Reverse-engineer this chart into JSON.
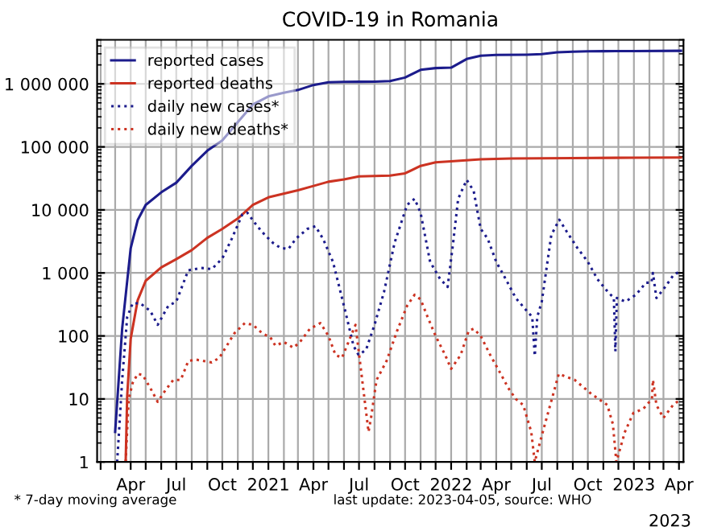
{
  "chart_data": {
    "type": "line",
    "title": "COVID-19 in Romania",
    "log": "y",
    "grid": true,
    "legend": "top left",
    "xlim": [
      "2020-01-25",
      "2023-04-10"
    ],
    "ylim": [
      1,
      5000000
    ],
    "yticks": [
      1,
      10,
      100,
      {
        "value": 1000,
        "label": "1 000"
      },
      {
        "value": 10000,
        "label": "10 000"
      },
      {
        "value": 100000,
        "label": "100 000"
      },
      {
        "value": 1000000,
        "label": "1 000 000"
      }
    ],
    "xticks": [
      {
        "value": "2020-02",
        "label": null
      },
      {
        "value": "2020-03",
        "label": null
      },
      {
        "value": "2020-04",
        "label": "Apr"
      },
      {
        "value": "2020-05",
        "label": null
      },
      {
        "value": "2020-06",
        "label": null
      },
      {
        "value": "2020-07",
        "label": "Jul"
      },
      {
        "value": "2020-08",
        "label": null
      },
      {
        "value": "2020-09",
        "label": null
      },
      {
        "value": "2020-10",
        "label": "Oct"
      },
      {
        "value": "2020-11",
        "label": null
      },
      {
        "value": "2020-12",
        "label": null
      },
      {
        "value": "2021-01",
        "label": "2021"
      },
      {
        "value": "2021-02",
        "label": null
      },
      {
        "value": "2021-03",
        "label": null
      },
      {
        "value": "2021-04",
        "label": "Apr"
      },
      {
        "value": "2021-05",
        "label": null
      },
      {
        "value": "2021-06",
        "label": null
      },
      {
        "value": "2021-07",
        "label": "Jul"
      },
      {
        "value": "2021-08",
        "label": null
      },
      {
        "value": "2021-09",
        "label": null
      },
      {
        "value": "2021-10",
        "label": "Oct"
      },
      {
        "value": "2021-11",
        "label": null
      },
      {
        "value": "2021-12",
        "label": null
      },
      {
        "value": "2022-01",
        "label": "2022"
      },
      {
        "value": "2022-02",
        "label": null
      },
      {
        "value": "2022-03",
        "label": null
      },
      {
        "value": "2022-04",
        "label": "Apr"
      },
      {
        "value": "2022-05",
        "label": null
      },
      {
        "value": "2022-06",
        "label": null
      },
      {
        "value": "2022-07",
        "label": "Jul"
      },
      {
        "value": "2022-08",
        "label": null
      },
      {
        "value": "2022-09",
        "label": null
      },
      {
        "value": "2022-10",
        "label": "Oct"
      },
      {
        "value": "2022-11",
        "label": null
      },
      {
        "value": "2022-12",
        "label": null
      },
      {
        "value": "2023-01",
        "label": "2023"
      },
      {
        "value": "2023-02",
        "label": null
      },
      {
        "value": "2023-03",
        "label": null
      },
      {
        "value": "2023-04",
        "label": "Apr"
      }
    ],
    "annotations": [
      "* 7-day moving average",
      "last update: 2023-04-05, source: WHO",
      "2023"
    ],
    "series": [
      {
        "name": "reported cases",
        "color": "#1c1c8c",
        "line_style": "solid",
        "x": [
          "2020-03-01",
          "2020-03-15",
          "2020-04-01",
          "2020-04-15",
          "2020-05-01",
          "2020-06-01",
          "2020-07-01",
          "2020-08-01",
          "2020-09-01",
          "2020-10-01",
          "2020-11-01",
          "2020-12-01",
          "2021-01-01",
          "2021-02-01",
          "2021-03-01",
          "2021-04-01",
          "2021-05-01",
          "2021-06-01",
          "2021-07-01",
          "2021-08-01",
          "2021-09-01",
          "2021-10-01",
          "2021-11-01",
          "2021-12-01",
          "2022-01-01",
          "2022-02-01",
          "2022-03-01",
          "2022-04-01",
          "2022-06-01",
          "2022-07-01",
          "2022-08-01",
          "2022-09-01",
          "2022-10-01",
          "2022-11-01",
          "2023-01-01",
          "2023-04-05"
        ],
        "values": [
          3,
          131,
          2460,
          6900,
          12000,
          19000,
          27000,
          50000,
          87000,
          127000,
          247000,
          470000,
          632000,
          725000,
          800000,
          960000,
          1060000,
          1078000,
          1081000,
          1083000,
          1110000,
          1260000,
          1670000,
          1780000,
          1810000,
          2480000,
          2800000,
          2880000,
          2910000,
          2960000,
          3170000,
          3240000,
          3290000,
          3300000,
          3320000,
          3350000
        ]
      },
      {
        "name": "reported deaths",
        "color": "#cc3322",
        "line_style": "solid",
        "x": [
          "2020-03-22",
          "2020-03-25",
          "2020-04-01",
          "2020-04-15",
          "2020-05-01",
          "2020-06-01",
          "2020-07-01",
          "2020-08-01",
          "2020-09-01",
          "2020-10-01",
          "2020-11-01",
          "2020-12-01",
          "2021-01-01",
          "2021-03-01",
          "2021-04-01",
          "2021-05-01",
          "2021-06-01",
          "2021-07-01",
          "2021-09-01",
          "2021-10-01",
          "2021-11-01",
          "2021-12-01",
          "2022-01-01",
          "2022-03-01",
          "2022-05-01",
          "2022-09-01",
          "2023-01-01",
          "2023-04-05"
        ],
        "values": [
          1,
          11,
          90,
          370,
          750,
          1220,
          1650,
          2300,
          3600,
          5000,
          7300,
          12000,
          15800,
          20500,
          24000,
          28000,
          30500,
          34000,
          35000,
          38000,
          50000,
          57000,
          58900,
          63500,
          65500,
          66500,
          67400,
          67900
        ]
      },
      {
        "name": "daily new cases*",
        "color": "#1c1c8c",
        "line_style": "dotted",
        "x": [
          "2020-03-05",
          "2020-03-15",
          "2020-03-25",
          "2020-04-05",
          "2020-04-20",
          "2020-05-10",
          "2020-05-25",
          "2020-06-15",
          "2020-07-01",
          "2020-07-25",
          "2020-08-20",
          "2020-09-10",
          "2020-10-01",
          "2020-10-20",
          "2020-11-10",
          "2020-11-20",
          "2020-12-10",
          "2020-12-25",
          "2021-01-10",
          "2021-01-25",
          "2021-02-10",
          "2021-02-25",
          "2021-03-20",
          "2021-04-05",
          "2021-04-20",
          "2021-05-10",
          "2021-06-01",
          "2021-06-20",
          "2021-06-30",
          "2021-07-15",
          "2021-08-01",
          "2021-08-20",
          "2021-09-10",
          "2021-10-05",
          "2021-10-20",
          "2021-11-01",
          "2021-11-20",
          "2021-12-10",
          "2021-12-25",
          "2022-01-05",
          "2022-01-15",
          "2022-02-01",
          "2022-02-15",
          "2022-03-01",
          "2022-03-15",
          "2022-04-01",
          "2022-04-20",
          "2022-05-10",
          "2022-06-01",
          "2022-06-12",
          "2022-06-17",
          "2022-06-22",
          "2022-07-01",
          "2022-07-20",
          "2022-08-05",
          "2022-08-20",
          "2022-09-10",
          "2022-10-01",
          "2022-10-20",
          "2022-11-10",
          "2022-11-22",
          "2022-11-25",
          "2022-11-28",
          "2022-12-15",
          "2023-01-05",
          "2023-01-25",
          "2023-02-05",
          "2023-02-08",
          "2023-02-15",
          "2023-03-01",
          "2023-03-20",
          "2023-04-05"
        ],
        "values": [
          1,
          20,
          200,
          330,
          330,
          250,
          150,
          300,
          350,
          1100,
          1200,
          1150,
          1700,
          3500,
          8500,
          9000,
          5500,
          4000,
          3000,
          2500,
          2400,
          3500,
          5000,
          5500,
          3500,
          1500,
          300,
          70,
          50,
          60,
          150,
          500,
          3000,
          12000,
          15000,
          9000,
          1500,
          800,
          600,
          3000,
          15000,
          30000,
          20000,
          5000,
          3500,
          1500,
          800,
          400,
          250,
          200,
          48,
          200,
          350,
          4000,
          7000,
          4500,
          2500,
          1500,
          800,
          500,
          400,
          57,
          400,
          350,
          450,
          700,
          700,
          1000,
          400,
          550,
          900,
          1100
        ]
      },
      {
        "name": "daily new deaths*",
        "color": "#cc3322",
        "line_style": "dotted",
        "x": [
          "2020-03-22",
          "2020-03-28",
          "2020-04-05",
          "2020-04-15",
          "2020-04-25",
          "2020-05-10",
          "2020-05-25",
          "2020-06-10",
          "2020-06-25",
          "2020-07-10",
          "2020-07-25",
          "2020-08-10",
          "2020-08-25",
          "2020-09-10",
          "2020-09-25",
          "2020-10-10",
          "2020-10-25",
          "2020-11-15",
          "2020-12-01",
          "2020-12-20",
          "2021-01-05",
          "2021-01-15",
          "2021-02-01",
          "2021-02-20",
          "2021-03-05",
          "2021-03-25",
          "2021-04-15",
          "2021-05-01",
          "2021-05-15",
          "2021-05-28",
          "2021-06-24",
          "2021-07-20",
          "2021-07-25",
          "2021-08-05",
          "2021-08-25",
          "2021-09-15",
          "2021-10-05",
          "2021-10-20",
          "2021-11-01",
          "2021-11-15",
          "2021-12-01",
          "2021-12-20",
          "2022-01-01",
          "2022-01-20",
          "2022-02-05",
          "2022-02-15",
          "2022-03-01",
          "2022-03-20",
          "2022-04-10",
          "2022-04-25",
          "2022-05-10",
          "2022-05-25",
          "2022-06-10",
          "2022-06-17",
          "2022-07-03",
          "2022-08-04",
          "2022-09-05",
          "2022-10-08",
          "2022-11-09",
          "2022-11-20",
          "2022-11-27",
          "2022-12-14",
          "2022-12-31",
          "2023-01-20",
          "2023-02-06",
          "2023-02-08",
          "2023-02-15",
          "2023-03-01",
          "2023-03-20",
          "2023-04-05"
        ],
        "values": [
          1,
          10,
          18,
          25,
          24,
          15,
          9,
          14,
          20,
          20,
          40,
          42,
          40,
          38,
          45,
          70,
          110,
          160,
          150,
          110,
          95,
          70,
          80,
          65,
          80,
          130,
          160,
          100,
          50,
          45,
          150,
          3,
          5,
          20,
          40,
          120,
          300,
          450,
          380,
          200,
          100,
          50,
          30,
          50,
          120,
          130,
          100,
          50,
          25,
          15,
          10,
          8,
          3,
          1,
          3,
          25,
          20,
          12,
          8,
          4,
          1,
          3,
          6,
          7,
          10,
          20,
          8,
          5,
          8,
          10
        ]
      }
    ]
  }
}
